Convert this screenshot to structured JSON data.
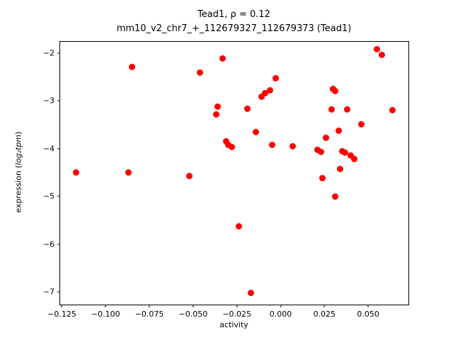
{
  "chart_data": {
    "type": "scatter",
    "title_lines": [
      "Tead1, ρ = 0.12",
      "mm10_v2_chr7_+_112679327_112679373 (Tead1)"
    ],
    "xlabel": "activity",
    "ylabel": "expression (log2 tpm)",
    "ylabel_parts": {
      "prefix": "expression (",
      "math": "log₂tpm",
      "suffix": ")"
    },
    "marker_color": "#ff0000",
    "grid": false,
    "legend": "none",
    "xlim": [
      -0.126,
      0.073
    ],
    "ylim": [
      -7.26,
      -1.77
    ],
    "xticks": {
      "values": [
        -0.125,
        -0.1,
        -0.075,
        -0.05,
        -0.025,
        0.0,
        0.025,
        0.05
      ],
      "labels": [
        "−0.125",
        "−0.100",
        "−0.075",
        "−0.050",
        "−0.025",
        "0.000",
        "0.025",
        "0.050"
      ]
    },
    "yticks": {
      "values": [
        -2,
        -3,
        -4,
        -5,
        -6,
        -7
      ],
      "labels": [
        "−2",
        "−3",
        "−4",
        "−5",
        "−6",
        "−7"
      ]
    },
    "points": [
      [
        -0.117,
        -4.5
      ],
      [
        -0.087,
        -4.5
      ],
      [
        -0.085,
        -2.3
      ],
      [
        -0.052,
        -4.57
      ],
      [
        -0.046,
        -2.42
      ],
      [
        -0.037,
        -3.28
      ],
      [
        -0.036,
        -3.13
      ],
      [
        -0.033,
        -2.12
      ],
      [
        -0.031,
        -3.85
      ],
      [
        -0.03,
        -3.93
      ],
      [
        -0.028,
        -3.97
      ],
      [
        -0.024,
        -5.63
      ],
      [
        -0.019,
        -3.17
      ],
      [
        -0.017,
        -7.02
      ],
      [
        -0.014,
        -3.66
      ],
      [
        -0.011,
        -2.92
      ],
      [
        -0.009,
        -2.85
      ],
      [
        -0.006,
        -2.78
      ],
      [
        -0.005,
        -3.92
      ],
      [
        -0.003,
        -2.53
      ],
      [
        0.007,
        -3.95
      ],
      [
        0.021,
        -4.02
      ],
      [
        0.023,
        -4.07
      ],
      [
        0.024,
        -4.62
      ],
      [
        0.026,
        -3.78
      ],
      [
        0.029,
        -3.18
      ],
      [
        0.03,
        -2.75
      ],
      [
        0.031,
        -2.8
      ],
      [
        0.031,
        -5.0
      ],
      [
        0.033,
        -3.63
      ],
      [
        0.034,
        -4.42
      ],
      [
        0.035,
        -4.05
      ],
      [
        0.037,
        -4.08
      ],
      [
        0.038,
        -3.18
      ],
      [
        0.04,
        -4.15
      ],
      [
        0.042,
        -4.22
      ],
      [
        0.046,
        -3.5
      ],
      [
        0.055,
        -1.93
      ],
      [
        0.058,
        -2.05
      ],
      [
        0.064,
        -3.2
      ]
    ]
  }
}
